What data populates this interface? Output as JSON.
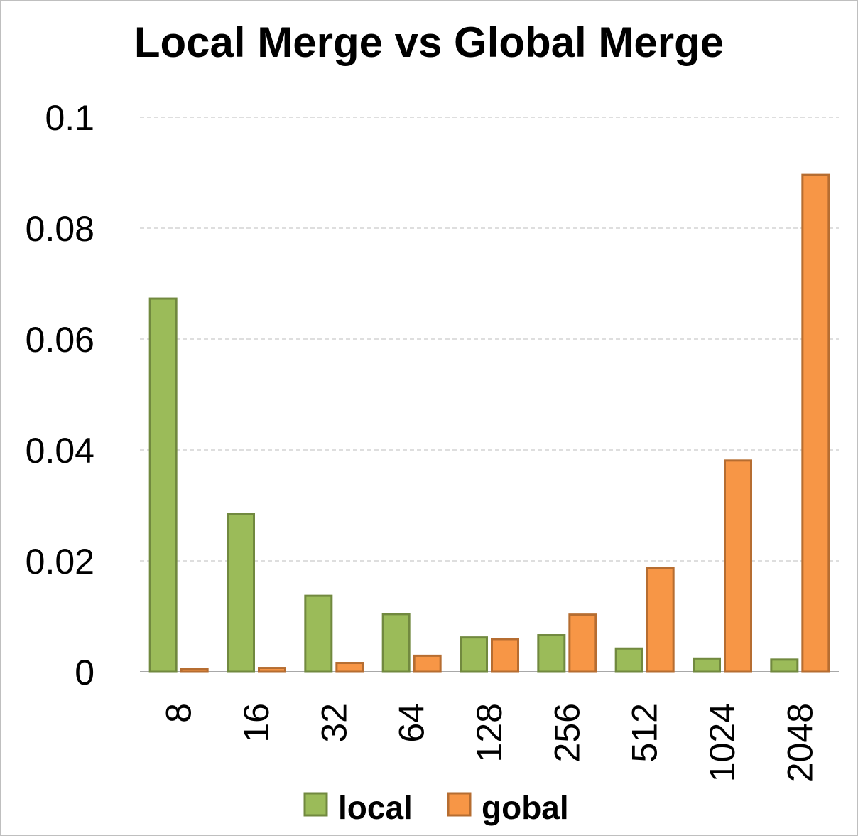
{
  "chart_data": {
    "type": "bar",
    "title": "Local Merge vs Global Merge",
    "xlabel": "",
    "ylabel": "",
    "categories": [
      "8",
      "16",
      "32",
      "64",
      "128",
      "256",
      "512",
      "1024",
      "2048"
    ],
    "series": [
      {
        "name": "local",
        "color": "#9bbb59",
        "stroke": "#71893f",
        "values": [
          0.0673,
          0.0284,
          0.0137,
          0.0104,
          0.0062,
          0.0066,
          0.0042,
          0.0024,
          0.0022
        ]
      },
      {
        "name": "gobal",
        "color": "#f79646",
        "stroke": "#b66d31",
        "values": [
          0.0005,
          0.0007,
          0.0016,
          0.0029,
          0.0059,
          0.0103,
          0.0187,
          0.0381,
          0.0896
        ]
      }
    ],
    "ylim": [
      0,
      0.1
    ],
    "yticks": [
      "0",
      "0.02",
      "0.04",
      "0.06",
      "0.08",
      "0.1"
    ],
    "grid": true,
    "legend": "bottom"
  }
}
